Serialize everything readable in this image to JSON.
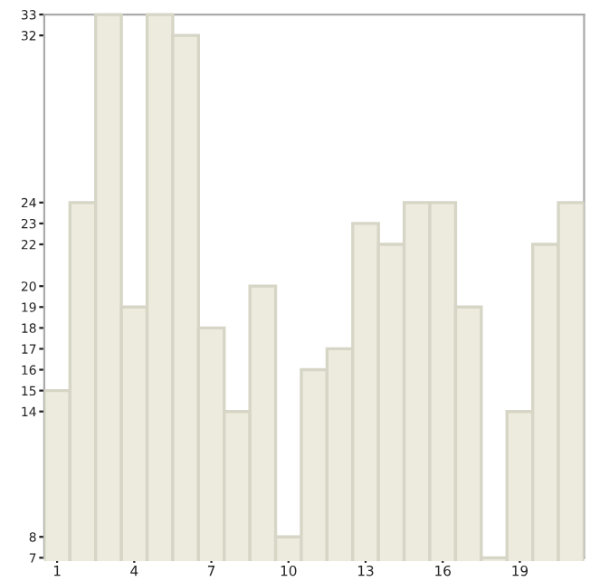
{
  "chart_data": {
    "type": "bar",
    "categories": [
      "1",
      null,
      null,
      "4",
      null,
      null,
      "7",
      null,
      null,
      "10",
      null,
      null,
      "13",
      null,
      null,
      "16",
      null,
      null,
      "19",
      null,
      null
    ],
    "values": [
      15,
      24,
      33,
      19,
      33,
      32,
      18,
      14,
      20,
      8,
      16,
      17,
      23,
      22,
      24,
      24,
      19,
      7,
      14,
      22,
      24
    ],
    "color": "#ecebdd",
    "ylim": [
      7,
      33
    ],
    "yticks": [
      7,
      8,
      14,
      15,
      16,
      17,
      18,
      19,
      20,
      22,
      23,
      24,
      32,
      33
    ],
    "grid": false,
    "legend": false
  }
}
